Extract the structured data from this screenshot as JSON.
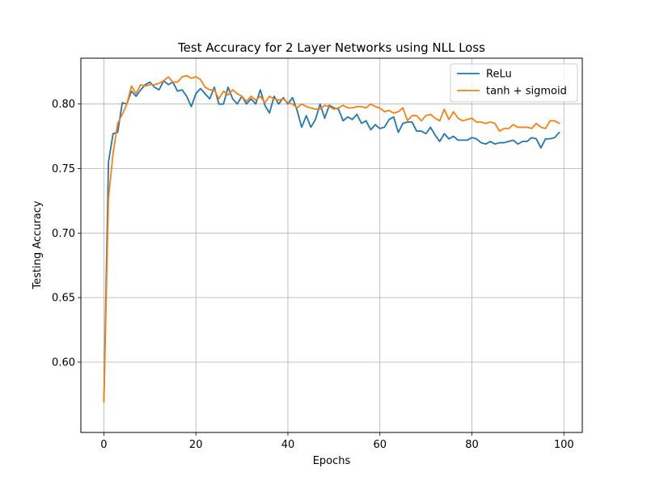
{
  "chart_data": {
    "type": "line",
    "title": "Test Accuracy for 2 Layer Networks using NLL Loss",
    "xlabel": "Epochs",
    "ylabel": "Testing Accuracy",
    "xlim": [
      -5,
      104
    ],
    "ylim": [
      0.5455,
      0.8355
    ],
    "xticks": [
      0,
      20,
      40,
      60,
      80,
      100
    ],
    "xtick_labels": [
      "0",
      "20",
      "40",
      "60",
      "80",
      "100"
    ],
    "yticks": [
      0.6,
      0.65,
      0.7,
      0.75,
      0.8
    ],
    "ytick_labels": [
      "0.60",
      "0.65",
      "0.70",
      "0.75",
      "0.80"
    ],
    "grid": true,
    "legend_position": "top-right",
    "x": [
      0,
      1,
      2,
      3,
      4,
      5,
      6,
      7,
      8,
      9,
      10,
      11,
      12,
      13,
      14,
      15,
      16,
      17,
      18,
      19,
      20,
      21,
      22,
      23,
      24,
      25,
      26,
      27,
      28,
      29,
      30,
      31,
      32,
      33,
      34,
      35,
      36,
      37,
      38,
      39,
      40,
      41,
      42,
      43,
      44,
      45,
      46,
      47,
      48,
      49,
      50,
      51,
      52,
      53,
      54,
      55,
      56,
      57,
      58,
      59,
      60,
      61,
      62,
      63,
      64,
      65,
      66,
      67,
      68,
      69,
      70,
      71,
      72,
      73,
      74,
      75,
      76,
      77,
      78,
      79,
      80,
      81,
      82,
      83,
      84,
      85,
      86,
      87,
      88,
      89,
      90,
      91,
      92,
      93,
      94,
      95,
      96,
      97,
      98,
      99
    ],
    "series": [
      {
        "name": "ReLu",
        "color": "#1f77b4",
        "values": [
          0.57,
          0.755,
          0.777,
          0.778,
          0.801,
          0.8,
          0.81,
          0.806,
          0.811,
          0.815,
          0.817,
          0.813,
          0.811,
          0.818,
          0.815,
          0.817,
          0.81,
          0.811,
          0.806,
          0.798,
          0.808,
          0.812,
          0.808,
          0.804,
          0.813,
          0.8,
          0.8,
          0.813,
          0.804,
          0.8,
          0.806,
          0.8,
          0.804,
          0.8,
          0.811,
          0.799,
          0.793,
          0.806,
          0.8,
          0.805,
          0.8,
          0.805,
          0.795,
          0.782,
          0.791,
          0.782,
          0.788,
          0.8,
          0.789,
          0.799,
          0.797,
          0.796,
          0.787,
          0.79,
          0.788,
          0.792,
          0.785,
          0.787,
          0.78,
          0.784,
          0.781,
          0.782,
          0.788,
          0.79,
          0.778,
          0.785,
          0.786,
          0.786,
          0.779,
          0.779,
          0.777,
          0.782,
          0.776,
          0.771,
          0.777,
          0.773,
          0.775,
          0.772,
          0.772,
          0.772,
          0.774,
          0.773,
          0.77,
          0.769,
          0.771,
          0.769,
          0.77,
          0.77,
          0.771,
          0.772,
          0.769,
          0.771,
          0.771,
          0.774,
          0.773,
          0.766,
          0.773,
          0.773,
          0.774,
          0.778
        ]
      },
      {
        "name": "tanh + sigmoid",
        "color": "#ff7f0e",
        "values": [
          0.569,
          0.727,
          0.762,
          0.785,
          0.792,
          0.8,
          0.814,
          0.808,
          0.815,
          0.814,
          0.815,
          0.815,
          0.816,
          0.818,
          0.821,
          0.817,
          0.817,
          0.821,
          0.822,
          0.82,
          0.821,
          0.819,
          0.813,
          0.811,
          0.811,
          0.804,
          0.81,
          0.807,
          0.811,
          0.808,
          0.806,
          0.802,
          0.806,
          0.803,
          0.806,
          0.801,
          0.806,
          0.804,
          0.803,
          0.804,
          0.801,
          0.8,
          0.797,
          0.8,
          0.798,
          0.797,
          0.796,
          0.796,
          0.799,
          0.798,
          0.796,
          0.797,
          0.799,
          0.797,
          0.797,
          0.798,
          0.798,
          0.797,
          0.8,
          0.798,
          0.797,
          0.794,
          0.795,
          0.793,
          0.794,
          0.797,
          0.787,
          0.791,
          0.791,
          0.787,
          0.791,
          0.792,
          0.789,
          0.787,
          0.796,
          0.788,
          0.794,
          0.789,
          0.787,
          0.788,
          0.789,
          0.786,
          0.786,
          0.785,
          0.786,
          0.785,
          0.779,
          0.781,
          0.781,
          0.784,
          0.782,
          0.782,
          0.782,
          0.781,
          0.785,
          0.782,
          0.781,
          0.787,
          0.787,
          0.785
        ]
      }
    ]
  }
}
